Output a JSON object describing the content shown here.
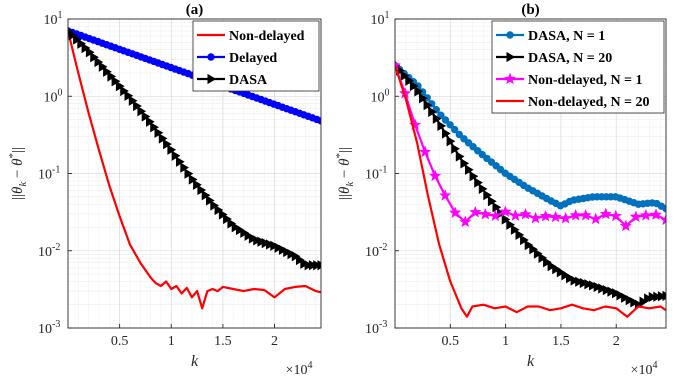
{
  "chart_data": [
    {
      "panel_id": "a",
      "type": "line",
      "title": "(a)",
      "xlabel": "k",
      "ylabel": "||θ_k − θ*||",
      "x_exponent_label": "×10^4",
      "yscale": "log",
      "xlim": [
        0,
        2.45
      ],
      "ylim": [
        0.001,
        10
      ],
      "grid": true,
      "legend_position": "top-right",
      "x_ticks": [
        {
          "value": 0.5,
          "label": "0.5"
        },
        {
          "value": 1,
          "label": "1"
        },
        {
          "value": 1.5,
          "label": "1.5"
        },
        {
          "value": 2,
          "label": "2"
        }
      ],
      "y_ticks": [
        {
          "value": 10,
          "mantissa": "10",
          "exp": "1"
        },
        {
          "value": 1,
          "mantissa": "10",
          "exp": "0"
        },
        {
          "value": 0.1,
          "mantissa": "10",
          "exp": "-1"
        },
        {
          "value": 0.01,
          "mantissa": "10",
          "exp": "-2"
        },
        {
          "value": 0.001,
          "mantissa": "10",
          "exp": "-3"
        }
      ],
      "series": [
        {
          "name": "Non-delayed",
          "color": "#ff0000",
          "marker": "none",
          "x": [
            0,
            0.1,
            0.2,
            0.3,
            0.4,
            0.5,
            0.6,
            0.7,
            0.8,
            0.85,
            0.9,
            0.95,
            1.0,
            1.05,
            1.1,
            1.15,
            1.2,
            1.25,
            1.3,
            1.35,
            1.4,
            1.45,
            1.5,
            1.6,
            1.7,
            1.8,
            1.9,
            2.0,
            2.1,
            2.2,
            2.3,
            2.4,
            2.45
          ],
          "y": [
            7,
            2.0,
            0.6,
            0.2,
            0.07,
            0.028,
            0.012,
            0.007,
            0.0045,
            0.0038,
            0.0035,
            0.004,
            0.0032,
            0.0035,
            0.0028,
            0.0033,
            0.0025,
            0.003,
            0.0018,
            0.003,
            0.0032,
            0.003,
            0.0034,
            0.0032,
            0.003,
            0.0032,
            0.0031,
            0.0025,
            0.0032,
            0.0034,
            0.0035,
            0.003,
            0.0029
          ]
        },
        {
          "name": "Delayed",
          "color": "#0000ff",
          "marker": "circle",
          "x": [
            0,
            2.45
          ],
          "y": [
            7,
            0.48
          ],
          "n_markers": 60
        },
        {
          "name": "DASA",
          "color": "#000000",
          "marker": "triangle-right",
          "x": [
            0,
            0.2,
            0.4,
            0.6,
            0.8,
            1.0,
            1.2,
            1.4,
            1.6,
            1.8,
            2.0,
            2.2,
            2.3,
            2.45
          ],
          "y": [
            7,
            3.8,
            1.9,
            0.95,
            0.45,
            0.2,
            0.085,
            0.04,
            0.021,
            0.014,
            0.0115,
            0.0085,
            0.0065,
            0.0065
          ],
          "n_markers": 60
        }
      ]
    },
    {
      "panel_id": "b",
      "type": "line",
      "title": "(b)",
      "xlabel": "k",
      "ylabel": "||θ_k − θ*||",
      "x_exponent_label": "×10^4",
      "yscale": "log",
      "xlim": [
        0,
        2.45
      ],
      "ylim": [
        0.001,
        10
      ],
      "grid": true,
      "legend_position": "top-right",
      "x_ticks": [
        {
          "value": 0.5,
          "label": "0.5"
        },
        {
          "value": 1,
          "label": "1"
        },
        {
          "value": 1.5,
          "label": "1.5"
        },
        {
          "value": 2,
          "label": "2"
        }
      ],
      "y_ticks": [
        {
          "value": 10,
          "mantissa": "10",
          "exp": "1"
        },
        {
          "value": 1,
          "mantissa": "10",
          "exp": "0"
        },
        {
          "value": 0.1,
          "mantissa": "10",
          "exp": "-1"
        },
        {
          "value": 0.01,
          "mantissa": "10",
          "exp": "-2"
        },
        {
          "value": 0.001,
          "mantissa": "10",
          "exp": "-3"
        }
      ],
      "series": [
        {
          "name": "DASA, N = 1",
          "color": "#0072bd",
          "marker": "circle",
          "x": [
            0,
            0.2,
            0.4,
            0.6,
            0.8,
            1.0,
            1.2,
            1.4,
            1.5,
            1.6,
            1.8,
            2.0,
            2.2,
            2.35,
            2.45
          ],
          "y": [
            2.5,
            1.4,
            0.6,
            0.3,
            0.17,
            0.1,
            0.065,
            0.045,
            0.038,
            0.045,
            0.05,
            0.05,
            0.04,
            0.042,
            0.035
          ],
          "n_markers": 60
        },
        {
          "name": "DASA, N = 20",
          "color": "#000000",
          "marker": "triangle-right",
          "x": [
            0,
            0.2,
            0.4,
            0.6,
            0.8,
            1.0,
            1.2,
            1.4,
            1.6,
            1.8,
            2.0,
            2.2,
            2.3,
            2.45
          ],
          "y": [
            2.5,
            1.2,
            0.45,
            0.15,
            0.06,
            0.025,
            0.012,
            0.0065,
            0.0042,
            0.0035,
            0.0028,
            0.002,
            0.0025,
            0.0026
          ],
          "n_markers": 60
        },
        {
          "name": "Non-delayed, N = 1",
          "color": "#ff00ff",
          "marker": "star",
          "x": [
            0,
            0.1,
            0.2,
            0.3,
            0.4,
            0.5,
            0.55,
            0.6,
            0.65,
            0.7,
            0.8,
            0.9,
            1.0,
            1.1,
            1.2,
            1.3,
            1.4,
            1.5,
            1.6,
            1.7,
            1.8,
            1.9,
            2.0,
            2.1,
            2.2,
            2.3,
            2.4,
            2.45
          ],
          "y": [
            2.5,
            1.0,
            0.35,
            0.15,
            0.07,
            0.04,
            0.03,
            0.035,
            0.02,
            0.032,
            0.03,
            0.028,
            0.032,
            0.028,
            0.03,
            0.025,
            0.03,
            0.025,
            0.028,
            0.03,
            0.025,
            0.03,
            0.028,
            0.02,
            0.03,
            0.028,
            0.03,
            0.025
          ],
          "n_markers": 28
        },
        {
          "name": "Non-delayed, N = 20",
          "color": "#ff0000",
          "marker": "none",
          "x": [
            0,
            0.1,
            0.2,
            0.3,
            0.4,
            0.5,
            0.6,
            0.65,
            0.7,
            0.8,
            0.9,
            1.0,
            1.1,
            1.2,
            1.3,
            1.4,
            1.5,
            1.6,
            1.7,
            1.8,
            1.9,
            2.0,
            2.1,
            2.2,
            2.3,
            2.4,
            2.45
          ],
          "y": [
            2.5,
            0.9,
            0.25,
            0.05,
            0.012,
            0.004,
            0.0018,
            0.0014,
            0.0019,
            0.002,
            0.0018,
            0.0019,
            0.0016,
            0.0019,
            0.0019,
            0.0017,
            0.0018,
            0.002,
            0.0018,
            0.0017,
            0.0019,
            0.0018,
            0.0014,
            0.0019,
            0.0018,
            0.0019,
            0.0017
          ]
        }
      ]
    }
  ]
}
